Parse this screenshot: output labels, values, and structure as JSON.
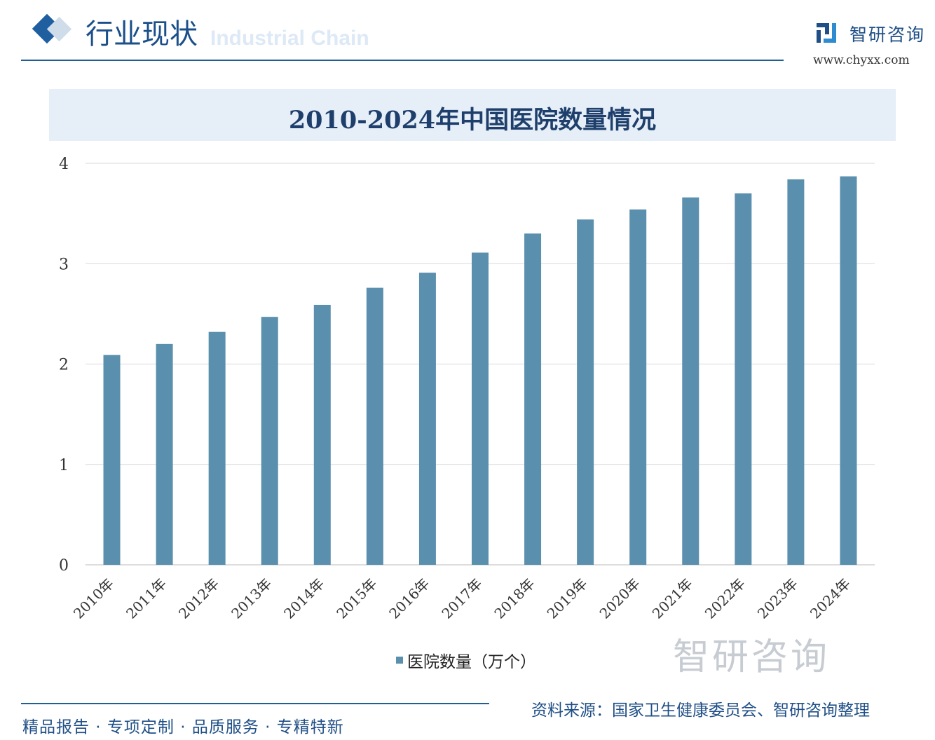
{
  "header": {
    "title": "行业现状",
    "subtitle": "Industrial Chain",
    "logo_text": "智研咨询",
    "logo_url": "www.chyxx.com"
  },
  "chart_data": {
    "type": "bar",
    "title": "2010-2024年中国医院数量情况",
    "categories": [
      "2010年",
      "2011年",
      "2012年",
      "2013年",
      "2014年",
      "2015年",
      "2016年",
      "2017年",
      "2018年",
      "2019年",
      "2020年",
      "2021年",
      "2022年",
      "2023年",
      "2024年"
    ],
    "series": [
      {
        "name": "医院数量（万个）",
        "values": [
          2.09,
          2.2,
          2.32,
          2.47,
          2.59,
          2.76,
          2.91,
          3.11,
          3.3,
          3.44,
          3.54,
          3.66,
          3.7,
          3.84,
          3.87
        ]
      }
    ],
    "ylim": [
      0,
      4
    ],
    "yticks": [
      0,
      1,
      2,
      3,
      4
    ],
    "grid": true,
    "legend": "bottom",
    "bar_color": "#5b8fae"
  },
  "footer": {
    "left": "精品报告 · 专项定制 · 品质服务 · 专精特新",
    "source": "资料来源：国家卫生健康委员会、智研咨询整理",
    "watermark": "智研咨询"
  }
}
